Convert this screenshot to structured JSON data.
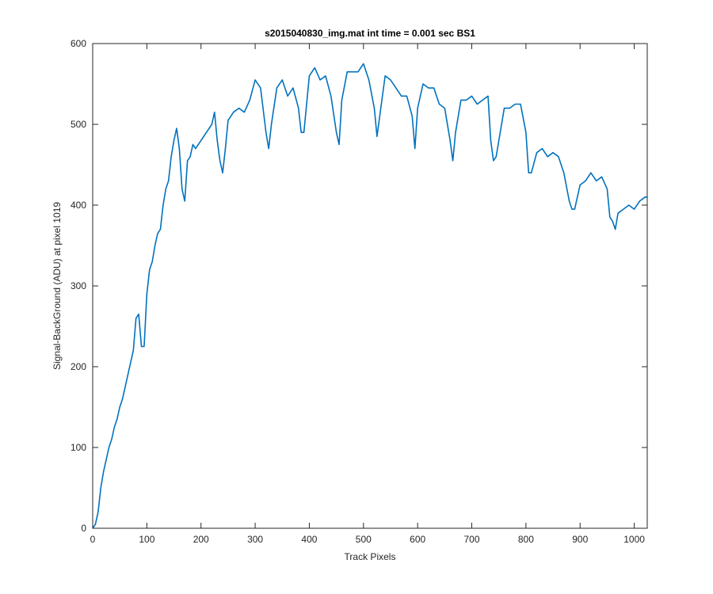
{
  "chart_data": {
    "type": "line",
    "title": "s2015040830_img.mat int time = 0.001 sec   BS1",
    "x_label": "Track Pixels",
    "y_label": "Signal-BackGround (ADU) at pixel 1019",
    "xlim": [
      0,
      1024
    ],
    "ylim": [
      0,
      600
    ],
    "xticks": [
      0,
      100,
      200,
      300,
      400,
      500,
      600,
      700,
      800,
      900,
      1000
    ],
    "yticks": [
      0,
      100,
      200,
      300,
      400,
      500,
      600
    ],
    "grid": false,
    "series": [
      {
        "color": "#0072bd",
        "x": [
          0,
          5,
          10,
          15,
          20,
          25,
          30,
          35,
          40,
          45,
          50,
          55,
          60,
          65,
          70,
          75,
          80,
          85,
          90,
          95,
          100,
          105,
          110,
          115,
          120,
          125,
          130,
          135,
          140,
          145,
          150,
          155,
          160,
          165,
          170,
          175,
          180,
          185,
          190,
          200,
          210,
          220,
          225,
          230,
          235,
          240,
          245,
          250,
          260,
          270,
          280,
          290,
          300,
          310,
          320,
          325,
          330,
          340,
          350,
          360,
          370,
          380,
          385,
          390,
          400,
          410,
          420,
          430,
          440,
          450,
          455,
          460,
          470,
          480,
          490,
          500,
          510,
          520,
          525,
          530,
          540,
          550,
          560,
          570,
          580,
          590,
          595,
          600,
          610,
          620,
          630,
          640,
          650,
          660,
          665,
          670,
          680,
          690,
          700,
          710,
          720,
          730,
          735,
          740,
          745,
          750,
          760,
          770,
          780,
          790,
          800,
          805,
          810,
          820,
          830,
          840,
          850,
          860,
          870,
          880,
          885,
          890,
          900,
          910,
          920,
          930,
          940,
          950,
          955,
          960,
          965,
          970,
          980,
          990,
          1000,
          1010,
          1020,
          1024
        ],
        "values": [
          0,
          5,
          20,
          50,
          70,
          85,
          100,
          110,
          125,
          135,
          150,
          160,
          175,
          190,
          205,
          220,
          260,
          265,
          225,
          225,
          290,
          320,
          330,
          350,
          365,
          370,
          400,
          420,
          430,
          460,
          480,
          495,
          470,
          420,
          405,
          455,
          460,
          475,
          470,
          480,
          490,
          500,
          515,
          480,
          455,
          440,
          470,
          505,
          515,
          520,
          515,
          530,
          555,
          545,
          490,
          470,
          500,
          545,
          555,
          535,
          545,
          520,
          490,
          490,
          560,
          570,
          555,
          560,
          535,
          490,
          475,
          530,
          565,
          565,
          565,
          575,
          555,
          520,
          485,
          510,
          560,
          555,
          545,
          535,
          535,
          510,
          470,
          520,
          550,
          545,
          545,
          525,
          520,
          480,
          455,
          490,
          530,
          530,
          535,
          525,
          530,
          535,
          480,
          455,
          460,
          480,
          520,
          520,
          525,
          525,
          490,
          440,
          440,
          465,
          470,
          460,
          465,
          460,
          440,
          405,
          395,
          395,
          425,
          430,
          440,
          430,
          435,
          420,
          385,
          380,
          370,
          390,
          395,
          400,
          395,
          405,
          410,
          410
        ]
      }
    ]
  }
}
